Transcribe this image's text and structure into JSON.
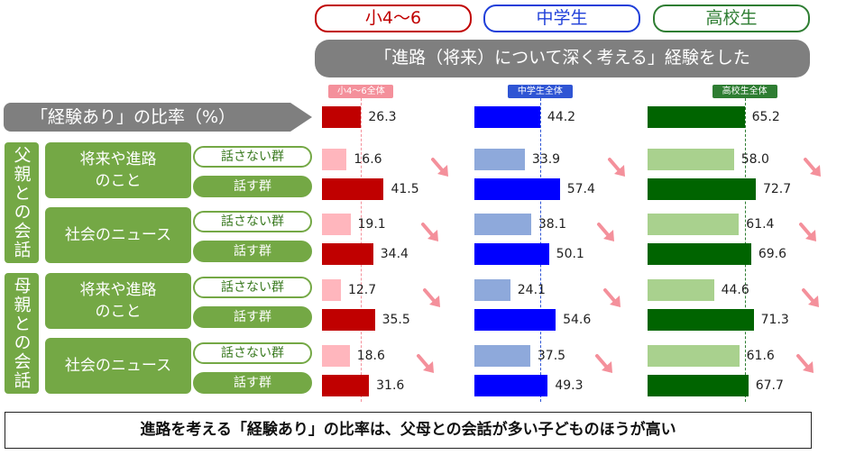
{
  "header": {
    "groups": [
      {
        "label": "小4〜6",
        "color": "#c00000"
      },
      {
        "label": "中学生",
        "color": "#1f3fd9"
      },
      {
        "label": "高校生",
        "color": "#2e7d32"
      }
    ],
    "banner": "「進路（将来）について深く考える」経験をした"
  },
  "row_labels": {
    "overall": "「経験あり」の比率（%）",
    "parents": [
      {
        "label": "父親との会話"
      },
      {
        "label": "母親との会話"
      }
    ],
    "topics": [
      "将来や進路\nのこと",
      "社会のニュース",
      "将来や進路\nのこと",
      "社会のニュース"
    ],
    "not_talk": "話さない群",
    "talk": "話す群"
  },
  "footer_note": "進路を考える「経験あり」の比率は、父母との会話が多い子どものほうが高い",
  "colors": {
    "strong": [
      "#c00000",
      "#0000ff",
      "#006400"
    ],
    "light": [
      "#ffb6bd",
      "#8ea9db",
      "#a9d18e"
    ],
    "arrow": "#f4909b",
    "label_green": "#74a845",
    "label_grey": "#7f7f7f"
  },
  "chart_data": {
    "type": "bar",
    "orientation": "horizontal",
    "categories": [
      "「経験あり」の比率（%）",
      "父親・将来や進路のこと・話さない群",
      "父親・将来や進路のこと・話す群",
      "父親・社会のニュース・話さない群",
      "父親・社会のニュース・話す群",
      "母親・将来や進路のこと・話さない群",
      "母親・将来や進路のこと・話す群",
      "母親・社会のニュース・話さない群",
      "母親・社会のニュース・話す群"
    ],
    "series": [
      {
        "name": "小4〜6",
        "total_label": "小4〜6全体",
        "values": [
          26.3,
          16.6,
          41.5,
          19.1,
          34.4,
          12.7,
          35.5,
          18.6,
          31.6
        ],
        "labels": [
          "26.3",
          "16.6",
          "41.5",
          "19.1",
          "34.4",
          "12.7",
          "35.5",
          "18.6",
          "31.6"
        ]
      },
      {
        "name": "中学生",
        "total_label": "中学生全体",
        "values": [
          44.2,
          33.9,
          57.4,
          38.1,
          50.1,
          24.1,
          54.6,
          37.5,
          49.3
        ],
        "labels": [
          "44.2",
          "33.9",
          "57.4",
          "38.1",
          "50.1",
          "24.1",
          "54.6",
          "37.5",
          "49.3"
        ]
      },
      {
        "name": "高校生",
        "total_label": "高校生全体",
        "values": [
          65.2,
          58.0,
          72.7,
          61.4,
          69.6,
          44.6,
          71.3,
          61.6,
          67.7
        ],
        "labels": [
          "65.2",
          "58.0",
          "72.7",
          "61.4",
          "69.6",
          "44.6",
          "71.3",
          "61.6",
          "67.7"
        ]
      }
    ],
    "xlim": [
      0,
      100
    ],
    "grid": false,
    "reference_lines": "each group's 全体 value (dashed)"
  }
}
